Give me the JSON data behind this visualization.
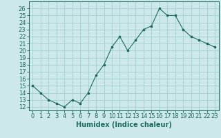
{
  "x": [
    0,
    1,
    2,
    3,
    4,
    5,
    6,
    7,
    8,
    9,
    10,
    11,
    12,
    13,
    14,
    15,
    16,
    17,
    18,
    19,
    20,
    21,
    22,
    23
  ],
  "y": [
    15,
    14,
    13,
    12.5,
    12,
    13,
    12.5,
    14,
    16.5,
    18,
    20.5,
    22,
    20,
    21.5,
    23,
    23.5,
    26,
    25,
    25,
    23,
    22,
    21.5,
    21,
    20.5
  ],
  "xlabel": "Humidex (Indice chaleur)",
  "xlim": [
    -0.5,
    23.5
  ],
  "ylim": [
    11.5,
    27
  ],
  "yticks": [
    12,
    13,
    14,
    15,
    16,
    17,
    18,
    19,
    20,
    21,
    22,
    23,
    24,
    25,
    26
  ],
  "xticks": [
    0,
    1,
    2,
    3,
    4,
    5,
    6,
    7,
    8,
    9,
    10,
    11,
    12,
    13,
    14,
    15,
    16,
    17,
    18,
    19,
    20,
    21,
    22,
    23
  ],
  "line_color": "#1a6b5a",
  "marker_color": "#1a6b5a",
  "bg_color": "#cce8e8",
  "grid_color": "#99cccc",
  "axis_color": "#1a6b5a",
  "label_color": "#1a6b5a",
  "tick_font_size": 6,
  "xlabel_font_size": 7
}
